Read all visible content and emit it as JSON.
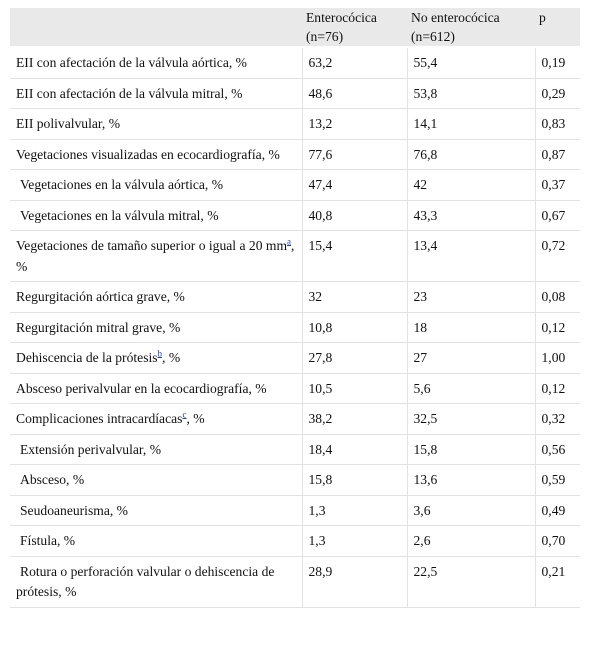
{
  "table": {
    "headers": {
      "col1": "",
      "col2_line1": "Enterocócica",
      "col2_line2": "(n=76)",
      "col3_line1": "No enterocócica",
      "col3_line2": "(n=612)",
      "col4": "p"
    },
    "rows": [
      {
        "label": "EII con afectación de la válvula aórtica, %",
        "enterococcal": "63,2",
        "non_enterococcal": "55,4",
        "p": "0,19"
      },
      {
        "label": "EII con afectación de la válvula mitral, %",
        "enterococcal": "48,6",
        "non_enterococcal": "53,8",
        "p": "0,29"
      },
      {
        "label": "EII polivalvular, %",
        "enterococcal": "13,2",
        "non_enterococcal": "14,1",
        "p": "0,83"
      },
      {
        "label": "Vegetaciones visualizadas en ecocardiografía, %",
        "enterococcal": "77,6",
        "non_enterococcal": "76,8",
        "p": "0,87"
      },
      {
        "label": "Vegetaciones en la válvula aórtica, %",
        "enterococcal": "47,4",
        "non_enterococcal": "42",
        "p": "0,37"
      },
      {
        "label": "Vegetaciones en la válvula mitral, %",
        "enterococcal": "40,8",
        "non_enterococcal": "43,3",
        "p": "0,67"
      },
      {
        "label": "Vegetaciones de tamaño superior o igual a 20 mm",
        "label_footnote": "a",
        "label_after": ", %",
        "enterococcal": "15,4",
        "non_enterococcal": "13,4",
        "p": "0,72"
      },
      {
        "label": "Regurgitación aórtica grave, %",
        "enterococcal": "32",
        "non_enterococcal": "23",
        "p": "0,08"
      },
      {
        "label": "Regurgitación mitral grave, %",
        "enterococcal": "10,8",
        "non_enterococcal": "18",
        "p": "0,12"
      },
      {
        "label": "Dehiscencia de la prótesis",
        "label_footnote": "b",
        "label_after": ", %",
        "enterococcal": "27,8",
        "non_enterococcal": "27",
        "p": "1,00"
      },
      {
        "label": "Absceso perivalvular en la ecocardiografía, %",
        "enterococcal": "10,5",
        "non_enterococcal": "5,6",
        "p": "0,12"
      },
      {
        "label": "Complicaciones intracardíacas",
        "label_footnote": "c",
        "label_after": ", %",
        "enterococcal": "38,2",
        "non_enterococcal": "32,5",
        "p": "0,32"
      },
      {
        "label": "Extensión perivalvular, %",
        "enterococcal": "18,4",
        "non_enterococcal": "15,8",
        "p": "0,56"
      },
      {
        "label": "Absceso, %",
        "enterococcal": "15,8",
        "non_enterococcal": "13,6",
        "p": "0,59"
      },
      {
        "label": "Seudoaneurisma, %",
        "enterococcal": "1,3",
        "non_enterococcal": "3,6",
        "p": "0,49"
      },
      {
        "label": "Fístula, %",
        "enterococcal": "1,3",
        "non_enterococcal": "2,6",
        "p": "0,70"
      },
      {
        "label": "Rotura o perforación valvular o dehiscencia de prótesis, %",
        "enterococcal": "28,9",
        "non_enterococcal": "22,5",
        "p": "0,21"
      }
    ]
  }
}
